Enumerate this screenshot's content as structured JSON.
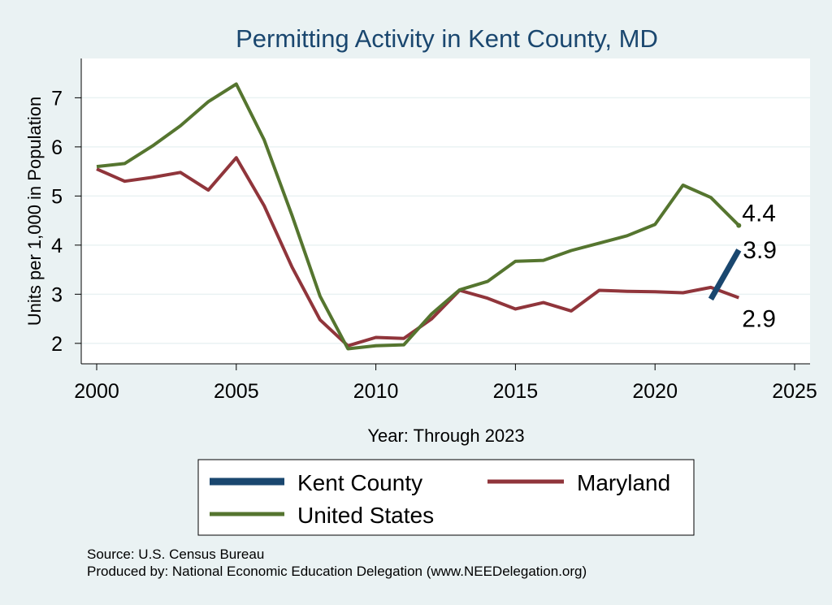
{
  "chart_data": {
    "type": "line",
    "title": "Permitting Activity in Kent County, MD",
    "xlabel": "Year: Through 2023",
    "ylabel": "Units per 1,000 in Population",
    "xlim": [
      2000,
      2025
    ],
    "ylim": [
      1.6,
      7.8
    ],
    "x_ticks": [
      2000,
      2005,
      2010,
      2015,
      2020,
      2025
    ],
    "y_ticks": [
      2,
      3,
      4,
      5,
      6,
      7
    ],
    "grid": true,
    "legend_position": "bottom",
    "series": [
      {
        "name": "Kent County",
        "color": "#1a476f",
        "x": [
          2022,
          2023
        ],
        "values": [
          2.9,
          3.9
        ],
        "end_label": "3.9"
      },
      {
        "name": "Maryland",
        "color": "#90353b",
        "x": [
          2000,
          2001,
          2002,
          2003,
          2004,
          2005,
          2006,
          2007,
          2008,
          2009,
          2010,
          2011,
          2012,
          2013,
          2014,
          2015,
          2016,
          2017,
          2018,
          2019,
          2020,
          2021,
          2022,
          2023
        ],
        "values": [
          5.55,
          5.3,
          5.38,
          5.48,
          5.12,
          5.78,
          4.8,
          3.55,
          2.48,
          1.95,
          2.12,
          2.1,
          2.5,
          3.08,
          2.92,
          2.7,
          2.83,
          2.66,
          3.08,
          3.06,
          3.05,
          3.03,
          3.14,
          2.93
        ],
        "end_label": "2.9"
      },
      {
        "name": "United States",
        "color": "#55752f",
        "x": [
          2000,
          2001,
          2002,
          2003,
          2004,
          2005,
          2006,
          2007,
          2008,
          2009,
          2010,
          2011,
          2012,
          2013,
          2014,
          2015,
          2016,
          2017,
          2018,
          2019,
          2020,
          2021,
          2022,
          2023
        ],
        "values": [
          5.6,
          5.66,
          6.02,
          6.43,
          6.92,
          7.28,
          6.14,
          4.6,
          2.96,
          1.89,
          1.95,
          1.97,
          2.6,
          3.09,
          3.26,
          3.67,
          3.69,
          3.89,
          4.04,
          4.19,
          4.42,
          5.22,
          4.97,
          4.4
        ],
        "end_label": "4.4"
      }
    ]
  },
  "notes": {
    "source": "Source: U.S. Census Bureau",
    "produced_by": "Produced by: National Economic Education Delegation (www.NEEDelegation.org)"
  }
}
